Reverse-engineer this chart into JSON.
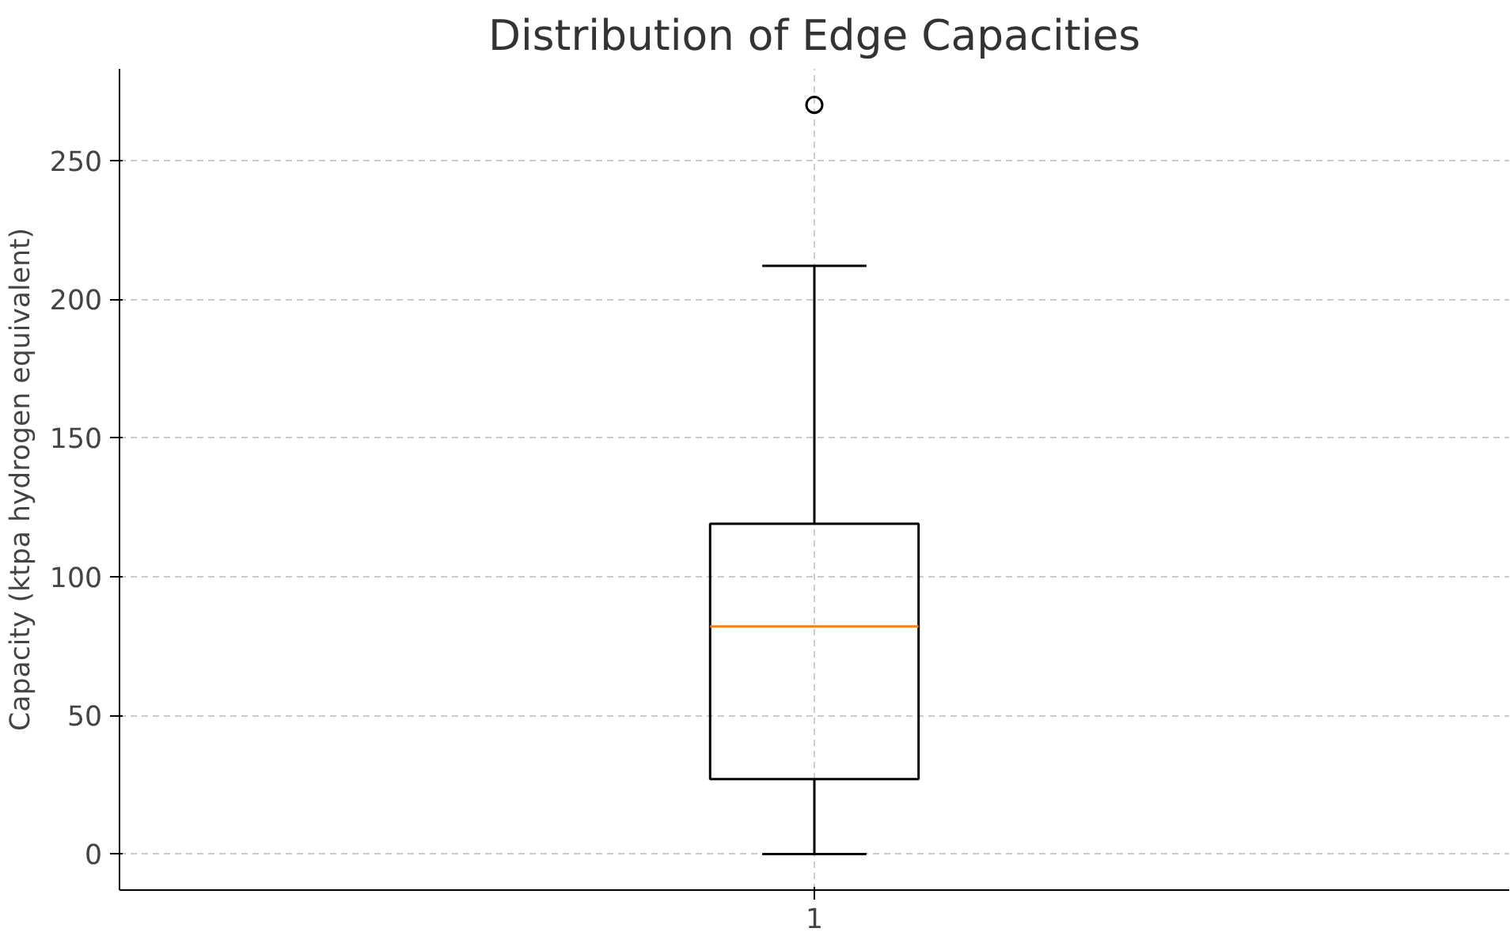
{
  "chart_data": {
    "type": "box",
    "title": "Distribution of Edge Capacities",
    "ylabel": "Capacity (ktpa hydrogen equivalent)",
    "categories": [
      "1"
    ],
    "series": [
      {
        "color": "#000000",
        "boxes": [
          {
            "low": 0,
            "q1": 27,
            "median": 82,
            "q3": 119,
            "high": 212,
            "outliers": [
              270
            ]
          }
        ]
      }
    ],
    "ylim": [
      -13,
      283
    ],
    "yticks": [
      0,
      50,
      100,
      150,
      200,
      250
    ],
    "grid": true
  }
}
